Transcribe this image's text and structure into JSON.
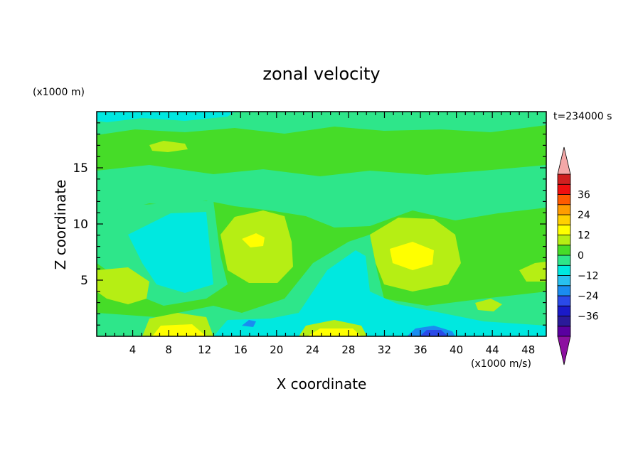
{
  "chart_data": {
    "type": "heatmap",
    "title": "zonal velocity",
    "xlabel": "X coordinate",
    "ylabel": "Z coordinate",
    "x_unit": "(x1000 m/s)",
    "y_unit": "(x1000 m)",
    "time_label": "t=234000 s",
    "xlim": [
      0,
      50
    ],
    "ylim": [
      0,
      20
    ],
    "x_ticks": [
      4,
      8,
      12,
      16,
      20,
      24,
      28,
      32,
      36,
      40,
      44,
      48
    ],
    "y_ticks": [
      5,
      10,
      15
    ],
    "grid": false,
    "colorbar": {
      "levels": [
        -42,
        -36,
        -30,
        -24,
        -18,
        -12,
        -6,
        0,
        6,
        12,
        18,
        24,
        30,
        36,
        42
      ],
      "tick_labels": [
        -36,
        -24,
        -12,
        0,
        12,
        24,
        36
      ],
      "colors": [
        "#5a00a0",
        "#2a1a9a",
        "#1a1ac8",
        "#2a4ae8",
        "#1a8cf0",
        "#28c0f0",
        "#00e8e0",
        "#2ee68a",
        "#46dc28",
        "#b6ee14",
        "#ffff00",
        "#ffd000",
        "#ff9c00",
        "#ff5a00",
        "#f01010",
        "#d02020"
      ],
      "under_color": "#8c10a0",
      "over_color": "#f4a8a8"
    },
    "features": [
      {
        "x": 17.5,
        "z": 8.5,
        "value": 14
      },
      {
        "x": 34.5,
        "z": 7.0,
        "value": 12
      },
      {
        "x": 9.5,
        "z": 0.6,
        "value": 14
      },
      {
        "x": 26.5,
        "z": 0.6,
        "value": 13
      },
      {
        "x": 3.5,
        "z": 4.3,
        "value": 9
      },
      {
        "x": 8.0,
        "z": 16.8,
        "value": 6
      },
      {
        "x": 36.5,
        "z": 0.4,
        "value": -26
      },
      {
        "x": 17.0,
        "z": 1.2,
        "value": -20
      },
      {
        "x": 8.0,
        "z": 9.5,
        "value": -6
      },
      {
        "x": 28.0,
        "z": 5.0,
        "value": -7
      }
    ]
  }
}
